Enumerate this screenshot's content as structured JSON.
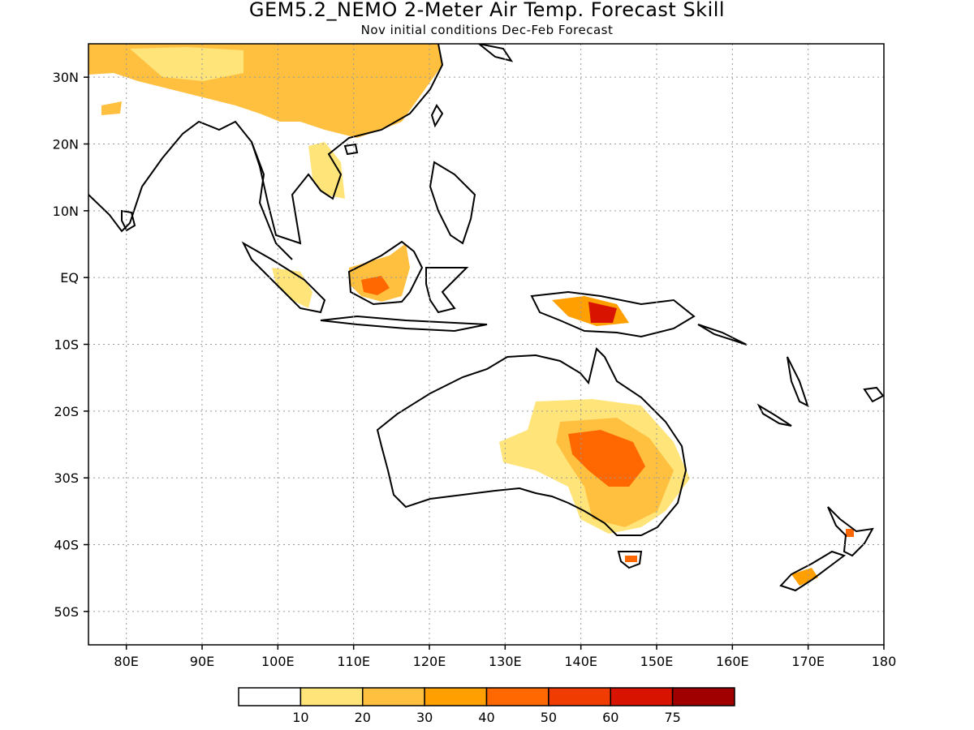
{
  "title": "GEM5.2_NEMO 2-Meter Air Temp. Forecast Skill",
  "subtitle": "Nov initial conditions  Dec-Feb Forecast",
  "map": {
    "lon_range": [
      75,
      180
    ],
    "lat_range": [
      -55,
      35
    ],
    "lat_labels": [
      {
        "lat": 30,
        "text": "30N"
      },
      {
        "lat": 20,
        "text": "20N"
      },
      {
        "lat": 10,
        "text": "10N"
      },
      {
        "lat": 0,
        "text": "EQ"
      },
      {
        "lat": -10,
        "text": "10S"
      },
      {
        "lat": -20,
        "text": "20S"
      },
      {
        "lat": -30,
        "text": "30S"
      },
      {
        "lat": -40,
        "text": "40S"
      },
      {
        "lat": -50,
        "text": "50S"
      }
    ],
    "lon_labels": [
      {
        "lon": 80,
        "text": "80E"
      },
      {
        "lon": 90,
        "text": "90E"
      },
      {
        "lon": 100,
        "text": "100E"
      },
      {
        "lon": 110,
        "text": "110E"
      },
      {
        "lon": 120,
        "text": "120E"
      },
      {
        "lon": 130,
        "text": "130E"
      },
      {
        "lon": 140,
        "text": "140E"
      },
      {
        "lon": 150,
        "text": "150E"
      },
      {
        "lon": 160,
        "text": "160E"
      },
      {
        "lon": 170,
        "text": "170E"
      },
      {
        "lon": 180,
        "text": "180"
      }
    ],
    "gridlines": true
  },
  "colorbar": {
    "colors": [
      "#ffffff",
      "#ffe47a",
      "#ffc040",
      "#ffa000",
      "#ff6800",
      "#f03c00",
      "#d81400",
      "#a00000"
    ],
    "labels": [
      "10",
      "20",
      "30",
      "40",
      "50",
      "60",
      "75"
    ]
  }
}
